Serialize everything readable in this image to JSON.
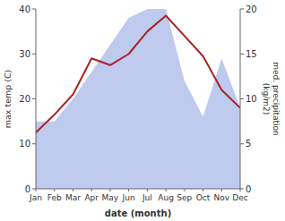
{
  "chart_data": {
    "type": "line",
    "categories": [
      "Jan",
      "Feb",
      "Mar",
      "Apr",
      "May",
      "Jun",
      "Jul",
      "Aug",
      "Sep",
      "Oct",
      "Nov",
      "Dec"
    ],
    "series": [
      {
        "type": "area",
        "axis": "y2",
        "color": "#becaee",
        "values": [
          7.5,
          7.5,
          10.0,
          13.0,
          16.0,
          19.0,
          20.0,
          20.0,
          12.0,
          8.0,
          14.5,
          9.0
        ]
      },
      {
        "type": "line",
        "color": "#aa2222",
        "values": [
          12.5,
          16.5,
          21.0,
          29.0,
          27.5,
          30.0,
          35.0,
          38.5,
          34.0,
          29.5,
          22.0,
          18.0
        ]
      }
    ],
    "xlabel": "date (month)",
    "ylabel": "max temp (C)",
    "y2label": "med. precipitation\n(kg/m2)",
    "ylim": [
      0,
      40
    ],
    "yticks": [
      0,
      10,
      20,
      30,
      40
    ],
    "y2lim": [
      0,
      20
    ],
    "y2ticks": [
      0,
      5,
      10,
      15,
      20
    ],
    "grid": false
  }
}
